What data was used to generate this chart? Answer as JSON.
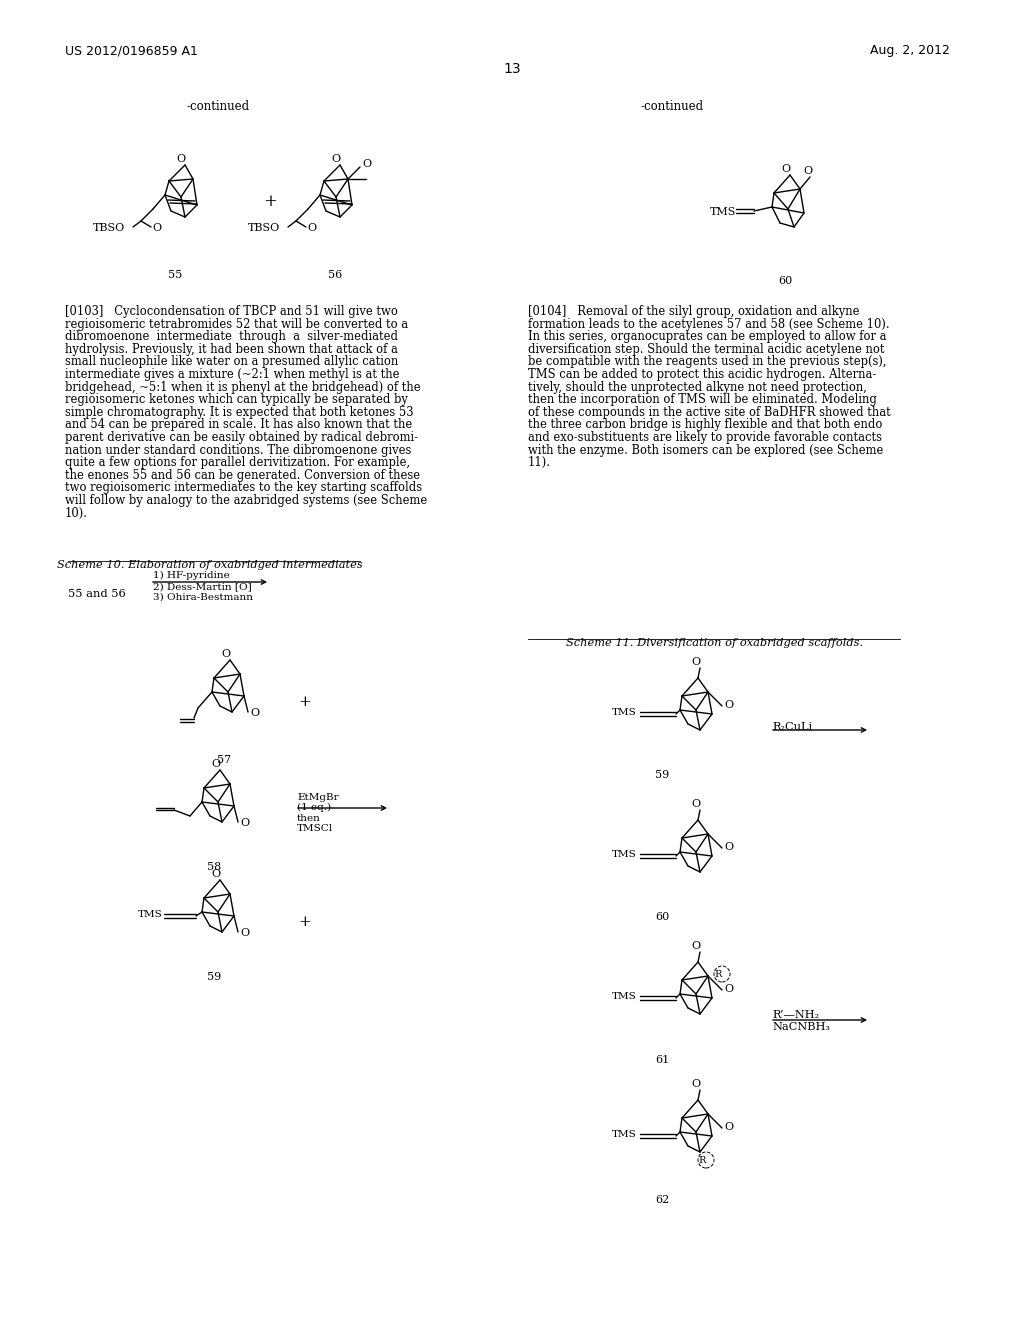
{
  "page_header_left": "US 2012/0196859 A1",
  "page_header_right": "Aug. 2, 2012",
  "page_number": "13",
  "background_color": "#ffffff",
  "figsize": [
    10.24,
    13.2
  ],
  "dpi": 100,
  "continued_left": "-continued",
  "continued_right": "-continued",
  "paragraph_103_lines": [
    "[0103]   Cyclocondensation of TBCP and 51 will give two",
    "regioisomeric tetrabromides 52 that will be converted to a",
    "dibromoenone  intermediate  through  a  silver-mediated",
    "hydrolysis. Previously, it had been shown that attack of a",
    "small nucleophile like water on a presumed allylic cation",
    "intermediate gives a mixture (~2:1 when methyl is at the",
    "bridgehead, ~5:1 when it is phenyl at the bridgehead) of the",
    "regioisomeric ketones which can typically be separated by",
    "simple chromatography. It is expected that both ketones 53",
    "and 54 can be prepared in scale. It has also known that the",
    "parent derivative can be easily obtained by radical debromi-",
    "nation under standard conditions. The dibromoenone gives",
    "quite a few options for parallel derivitization. For example,",
    "the enones 55 and 56 can be generated. Conversion of these",
    "two regioisomeric intermediates to the key starting scaffolds",
    "will follow by analogy to the azabridged systems (see Scheme",
    "10)."
  ],
  "paragraph_104_lines": [
    "[0104]   Removal of the silyl group, oxidation and alkyne",
    "formation leads to the acetylenes 57 and 58 (see Scheme 10).",
    "In this series, organocuprates can be employed to allow for a",
    "diversification step. Should the terminal acidic acetylene not",
    "be compatible with the reagents used in the previous step(s),",
    "TMS can be added to protect this acidic hydrogen. Alterna-",
    "tively, should the unprotected alkyne not need protection,",
    "then the incorporation of TMS will be eliminated. Modeling",
    "of these compounds in the active site of BaDHFR showed that",
    "the three carbon bridge is highly flexible and that both endo",
    "and exo-substituents are likely to provide favorable contacts",
    "with the enzyme. Both isomers can be explored (see Scheme",
    "11)."
  ],
  "scheme10_title": "Scheme 10. Elaboration of oxabridged intermediates",
  "scheme11_title": "Scheme 11. Diversification of oxabridged scaffolds.",
  "etmgbr_lines": [
    "EtMgBr",
    "(1 eq.)",
    "then",
    "TMSCl"
  ]
}
